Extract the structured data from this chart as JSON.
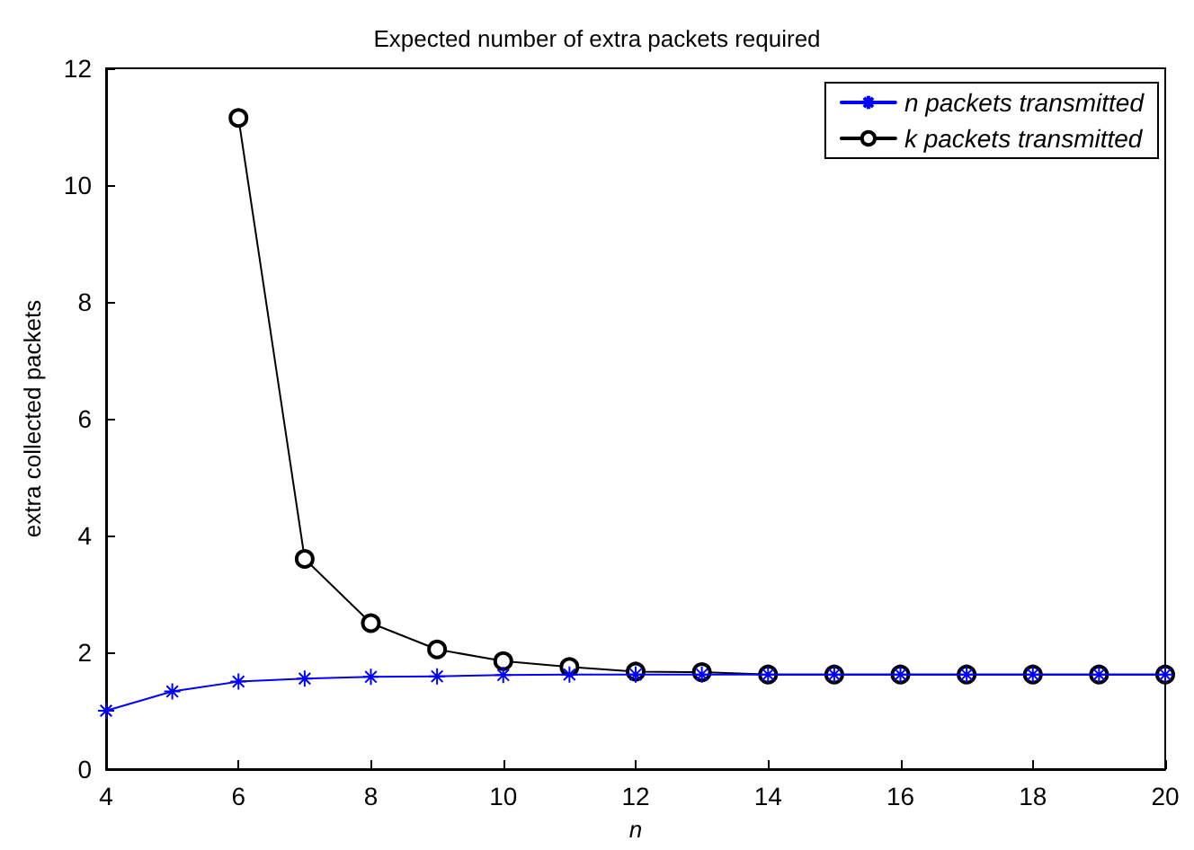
{
  "chart_data": {
    "type": "line",
    "title": "Expected number of extra packets required",
    "xlabel": "n",
    "ylabel": "extra collected packets",
    "x": [
      4,
      5,
      6,
      7,
      8,
      9,
      10,
      11,
      12,
      13,
      14,
      15,
      16,
      17,
      18,
      19,
      20
    ],
    "series": [
      {
        "name": "n packets transmitted",
        "color": "#0000ff",
        "marker": "cross",
        "values": [
          1.0,
          1.33,
          1.5,
          1.55,
          1.58,
          1.59,
          1.61,
          1.62,
          1.62,
          1.62,
          1.62,
          1.62,
          1.62,
          1.62,
          1.62,
          1.62,
          1.62
        ]
      },
      {
        "name": "k packets transmitted",
        "color": "#000000",
        "marker": "circle",
        "values": [
          null,
          null,
          11.15,
          3.6,
          2.5,
          2.05,
          1.85,
          1.75,
          1.67,
          1.66,
          1.62,
          1.62,
          1.62,
          1.62,
          1.62,
          1.62,
          1.62
        ]
      }
    ],
    "xlim": [
      4,
      20
    ],
    "xticks": [
      4,
      6,
      8,
      10,
      12,
      14,
      16,
      18,
      20
    ],
    "ylim": [
      0,
      12
    ],
    "yticks": [
      0,
      2,
      4,
      6,
      8,
      10,
      12
    ],
    "grid": false,
    "legend": "top right",
    "line_style": "solid"
  }
}
